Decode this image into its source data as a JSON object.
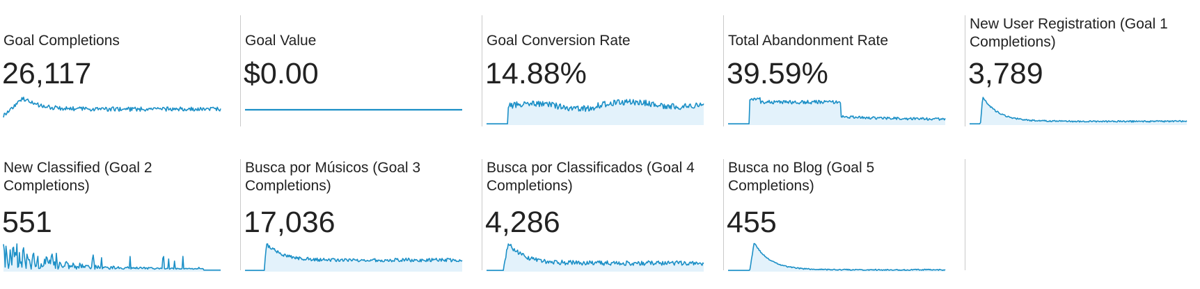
{
  "theme": {
    "line_color": "#1b8fc6",
    "fill_color": "#e3f2fb",
    "divider_color": "#c9c9c9",
    "text_color": "#222222"
  },
  "metrics": [
    {
      "label": "Goal Completions",
      "value": "26,117",
      "spark": {
        "shape": "spike-decay",
        "baseline": 0.52,
        "peak": 0.88,
        "peak_at": 0.09,
        "noise": 0.14,
        "start_at": 0.0,
        "fill": false
      }
    },
    {
      "label": "Goal Value",
      "value": "$0.00",
      "spark": {
        "shape": "flat",
        "baseline": 0.5,
        "peak": 0.5,
        "peak_at": 0,
        "noise": 0.0,
        "start_at": 0.0,
        "fill": false
      }
    },
    {
      "label": "Goal Conversion Rate",
      "value": "14.88%",
      "spark": {
        "shape": "plateau-wave",
        "baseline": 0.62,
        "peak": 0.8,
        "peak_at": 0.5,
        "noise": 0.2,
        "start_at": 0.1,
        "fill": true
      }
    },
    {
      "label": "Total Abandonment Rate",
      "value": "39.59%",
      "spark": {
        "shape": "plateau-drop",
        "baseline": 0.75,
        "peak": 0.92,
        "peak_at": 0.03,
        "noise": 0.12,
        "start_at": 0.1,
        "fill": true
      }
    },
    {
      "label": "New User Registration (Goal 1 Completions)",
      "value": "3,789",
      "spark": {
        "shape": "spike-decay",
        "baseline": 0.12,
        "peak": 0.92,
        "peak_at": 0.06,
        "noise": 0.05,
        "start_at": 0.05,
        "fill": true
      }
    },
    {
      "label": "New Classified (Goal 2 Completions)",
      "value": "551",
      "spark": {
        "shape": "spiky",
        "baseline": 0.3,
        "peak": 0.95,
        "peak_at": 0.06,
        "noise": 0.5,
        "start_at": 0.0,
        "fill": true
      }
    },
    {
      "label": "Busca por Músicos (Goal 3 Completions)",
      "value": "17,036",
      "spark": {
        "shape": "spike-decay",
        "baseline": 0.38,
        "peak": 0.9,
        "peak_at": 0.1,
        "noise": 0.12,
        "start_at": 0.09,
        "fill": true
      }
    },
    {
      "label": "Busca por Classificados (Goal 4 Completions)",
      "value": "4,286",
      "spark": {
        "shape": "spike-decay",
        "baseline": 0.28,
        "peak": 0.92,
        "peak_at": 0.1,
        "noise": 0.15,
        "start_at": 0.08,
        "fill": true
      }
    },
    {
      "label": "Busca no Blog (Goal 5 Completions)",
      "value": "455",
      "spark": {
        "shape": "spike-decay",
        "baseline": 0.06,
        "peak": 0.95,
        "peak_at": 0.12,
        "noise": 0.04,
        "start_at": 0.1,
        "fill": true
      }
    }
  ]
}
